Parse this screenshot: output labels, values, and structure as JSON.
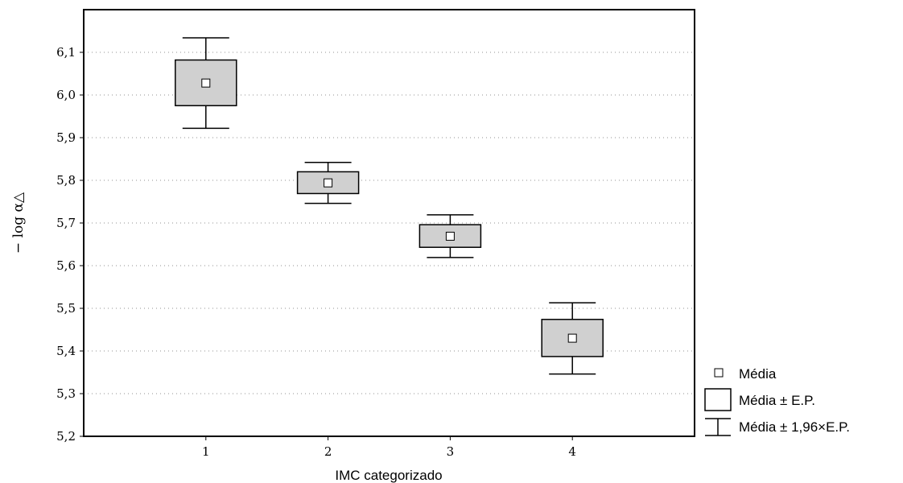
{
  "chart_data": {
    "type": "box",
    "xlabel": "IMC categorizado",
    "ylabel": "− log α△",
    "categories": [
      "1",
      "2",
      "3",
      "4"
    ],
    "ylim": [
      5.2,
      6.2
    ],
    "yticks": [
      "5,2",
      "5,3",
      "5,4",
      "5,5",
      "5,6",
      "5,7",
      "5,8",
      "5,9",
      "6,0",
      "6,1"
    ],
    "grid": true,
    "legend_position": "right",
    "series": [
      {
        "category": "1",
        "mean": 6.028,
        "se_low": 5.975,
        "se_high": 6.082,
        "ci_low": 5.922,
        "ci_high": 6.134
      },
      {
        "category": "2",
        "mean": 5.794,
        "se_low": 5.769,
        "se_high": 5.82,
        "ci_low": 5.746,
        "ci_high": 5.842
      },
      {
        "category": "3",
        "mean": 5.669,
        "se_low": 5.643,
        "se_high": 5.696,
        "ci_low": 5.619,
        "ci_high": 5.719
      },
      {
        "category": "4",
        "mean": 5.43,
        "se_low": 5.387,
        "se_high": 5.474,
        "ci_low": 5.346,
        "ci_high": 5.513
      }
    ]
  },
  "legend": {
    "mean_label": "Média",
    "se_label": "Média ± E.P.",
    "ci_label": "Média ± 1,96×E.P."
  },
  "colors": {
    "box_fill": "#d0d0d0",
    "line": "#000000",
    "grid": "#909090",
    "mean_marker": "#ffffff"
  }
}
